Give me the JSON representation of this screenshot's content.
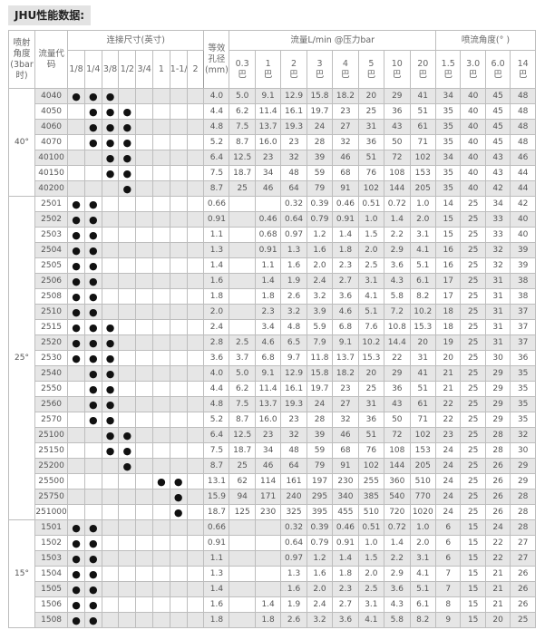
{
  "title": "JHU性能数据:",
  "headers": {
    "spray_angle": "喷射角度(3bar时)",
    "flow_code": "流量代码",
    "connection_size": "连接尺寸(英寸)",
    "sizes": [
      "1/8",
      "1/4",
      "3/8",
      "1/2",
      "3/4",
      "1",
      "1-1/4",
      "2"
    ],
    "orifice_line1": "等效",
    "orifice_line2": "孔径",
    "orifice_line3": "(mm)",
    "flow": "流量L/min @压力bar",
    "flow_pressures": [
      "0.3",
      "1",
      "2",
      "3",
      "4",
      "5",
      "10",
      "20"
    ],
    "spray_angle_deg": "喷流角度(° )",
    "angle_pressures": [
      "1.5",
      "3.0",
      "6.0",
      "14"
    ],
    "unit": "巴"
  },
  "dot_symbol": "●",
  "groups": [
    {
      "angle": "40°",
      "rows": [
        {
          "code": "4040",
          "sizes": [
            1,
            1,
            1,
            0,
            0,
            0,
            0,
            0
          ],
          "orifice": "4.0",
          "flow": [
            "5.0",
            "9.1",
            "12.9",
            "15.8",
            "18.2",
            "20",
            "29",
            "41"
          ],
          "angles": [
            "34",
            "40",
            "45",
            "48"
          ]
        },
        {
          "code": "4050",
          "sizes": [
            0,
            1,
            1,
            1,
            0,
            0,
            0,
            0
          ],
          "orifice": "4.4",
          "flow": [
            "6.2",
            "11.4",
            "16.1",
            "19.7",
            "23",
            "25",
            "36",
            "51"
          ],
          "angles": [
            "35",
            "40",
            "45",
            "48"
          ]
        },
        {
          "code": "4060",
          "sizes": [
            0,
            1,
            1,
            1,
            0,
            0,
            0,
            0
          ],
          "orifice": "4.8",
          "flow": [
            "7.5",
            "13.7",
            "19.3",
            "24",
            "27",
            "31",
            "43",
            "61"
          ],
          "angles": [
            "35",
            "40",
            "45",
            "48"
          ]
        },
        {
          "code": "4070",
          "sizes": [
            0,
            1,
            1,
            1,
            0,
            0,
            0,
            0
          ],
          "orifice": "5.2",
          "flow": [
            "8.7",
            "16.0",
            "23",
            "28",
            "32",
            "36",
            "50",
            "71"
          ],
          "angles": [
            "35",
            "40",
            "45",
            "48"
          ]
        },
        {
          "code": "40100",
          "sizes": [
            0,
            0,
            1,
            1,
            0,
            0,
            0,
            0
          ],
          "orifice": "6.4",
          "flow": [
            "12.5",
            "23",
            "32",
            "39",
            "46",
            "51",
            "72",
            "102"
          ],
          "angles": [
            "34",
            "40",
            "43",
            "46"
          ]
        },
        {
          "code": "40150",
          "sizes": [
            0,
            0,
            1,
            1,
            0,
            0,
            0,
            0
          ],
          "orifice": "7.5",
          "flow": [
            "18.7",
            "34",
            "48",
            "59",
            "68",
            "76",
            "108",
            "153"
          ],
          "angles": [
            "35",
            "40",
            "43",
            "44"
          ]
        },
        {
          "code": "40200",
          "sizes": [
            0,
            0,
            0,
            1,
            0,
            0,
            0,
            0
          ],
          "orifice": "8.7",
          "flow": [
            "25",
            "46",
            "64",
            "79",
            "91",
            "102",
            "144",
            "205"
          ],
          "angles": [
            "35",
            "40",
            "42",
            "44"
          ]
        }
      ]
    },
    {
      "angle": "25°",
      "rows": [
        {
          "code": "2501",
          "sizes": [
            1,
            1,
            0,
            0,
            0,
            0,
            0,
            0
          ],
          "orifice": "0.66",
          "flow": [
            "",
            "",
            "0.32",
            "0.39",
            "0.46",
            "0.51",
            "0.72",
            "1.0"
          ],
          "angles": [
            "14",
            "25",
            "34",
            "42"
          ]
        },
        {
          "code": "2502",
          "sizes": [
            1,
            1,
            0,
            0,
            0,
            0,
            0,
            0
          ],
          "orifice": "0.91",
          "flow": [
            "",
            "0.46",
            "0.64",
            "0.79",
            "0.91",
            "1.0",
            "1.4",
            "2.0"
          ],
          "angles": [
            "15",
            "25",
            "33",
            "40"
          ]
        },
        {
          "code": "2503",
          "sizes": [
            1,
            1,
            0,
            0,
            0,
            0,
            0,
            0
          ],
          "orifice": "1.1",
          "flow": [
            "",
            "0.68",
            "0.97",
            "1.2",
            "1.4",
            "1.5",
            "2.2",
            "3.1"
          ],
          "angles": [
            "15",
            "25",
            "33",
            "40"
          ]
        },
        {
          "code": "2504",
          "sizes": [
            1,
            1,
            0,
            0,
            0,
            0,
            0,
            0
          ],
          "orifice": "1.3",
          "flow": [
            "",
            "0.91",
            "1.3",
            "1.6",
            "1.8",
            "2.0",
            "2.9",
            "4.1"
          ],
          "angles": [
            "16",
            "25",
            "32",
            "39"
          ]
        },
        {
          "code": "2505",
          "sizes": [
            1,
            1,
            0,
            0,
            0,
            0,
            0,
            0
          ],
          "orifice": "1.4",
          "flow": [
            "",
            "1.1",
            "1.6",
            "2.0",
            "2.3",
            "2.5",
            "3.6",
            "5.1"
          ],
          "angles": [
            "16",
            "25",
            "32",
            "39"
          ]
        },
        {
          "code": "2506",
          "sizes": [
            1,
            1,
            0,
            0,
            0,
            0,
            0,
            0
          ],
          "orifice": "1.6",
          "flow": [
            "",
            "1.4",
            "1.9",
            "2.4",
            "2.7",
            "3.1",
            "4.3",
            "6.1"
          ],
          "angles": [
            "17",
            "25",
            "31",
            "38"
          ]
        },
        {
          "code": "2508",
          "sizes": [
            1,
            1,
            0,
            0,
            0,
            0,
            0,
            0
          ],
          "orifice": "1.8",
          "flow": [
            "",
            "1.8",
            "2.6",
            "3.2",
            "3.6",
            "4.1",
            "5.8",
            "8.2"
          ],
          "angles": [
            "17",
            "25",
            "31",
            "38"
          ]
        },
        {
          "code": "2510",
          "sizes": [
            1,
            1,
            0,
            0,
            0,
            0,
            0,
            0
          ],
          "orifice": "2.0",
          "flow": [
            "",
            "2.3",
            "3.2",
            "3.9",
            "4.6",
            "5.1",
            "7.2",
            "10.2"
          ],
          "angles": [
            "18",
            "25",
            "31",
            "37"
          ]
        },
        {
          "code": "2515",
          "sizes": [
            1,
            1,
            1,
            0,
            0,
            0,
            0,
            0
          ],
          "orifice": "2.4",
          "flow": [
            "",
            "3.4",
            "4.8",
            "5.9",
            "6.8",
            "7.6",
            "10.8",
            "15.3"
          ],
          "angles": [
            "18",
            "25",
            "31",
            "37"
          ]
        },
        {
          "code": "2520",
          "sizes": [
            1,
            1,
            1,
            0,
            0,
            0,
            0,
            0
          ],
          "orifice": "2.8",
          "flow": [
            "2.5",
            "4.6",
            "6.5",
            "7.9",
            "9.1",
            "10.2",
            "14.4",
            "20"
          ],
          "angles": [
            "19",
            "25",
            "31",
            "37"
          ]
        },
        {
          "code": "2530",
          "sizes": [
            1,
            1,
            1,
            0,
            0,
            0,
            0,
            0
          ],
          "orifice": "3.6",
          "flow": [
            "3.7",
            "6.8",
            "9.7",
            "11.8",
            "13.7",
            "15.3",
            "22",
            "31"
          ],
          "angles": [
            "20",
            "25",
            "30",
            "36"
          ]
        },
        {
          "code": "2540",
          "sizes": [
            0,
            1,
            1,
            0,
            0,
            0,
            0,
            0
          ],
          "orifice": "4.0",
          "flow": [
            "5.0",
            "9.1",
            "12.9",
            "15.8",
            "18.2",
            "20",
            "29",
            "41"
          ],
          "angles": [
            "21",
            "25",
            "29",
            "35"
          ]
        },
        {
          "code": "2550",
          "sizes": [
            0,
            1,
            1,
            0,
            0,
            0,
            0,
            0
          ],
          "orifice": "4.4",
          "flow": [
            "6.2",
            "11.4",
            "16.1",
            "19.7",
            "23",
            "25",
            "36",
            "51"
          ],
          "angles": [
            "21",
            "25",
            "29",
            "35"
          ]
        },
        {
          "code": "2560",
          "sizes": [
            0,
            1,
            1,
            0,
            0,
            0,
            0,
            0
          ],
          "orifice": "4.8",
          "flow": [
            "7.5",
            "13.7",
            "19.3",
            "24",
            "27",
            "31",
            "43",
            "61"
          ],
          "angles": [
            "22",
            "25",
            "29",
            "35"
          ]
        },
        {
          "code": "2570",
          "sizes": [
            0,
            1,
            1,
            0,
            0,
            0,
            0,
            0
          ],
          "orifice": "5.2",
          "flow": [
            "8.7",
            "16.0",
            "23",
            "28",
            "32",
            "36",
            "50",
            "71"
          ],
          "angles": [
            "22",
            "25",
            "29",
            "35"
          ]
        },
        {
          "code": "25100",
          "sizes": [
            0,
            0,
            1,
            1,
            0,
            0,
            0,
            0
          ],
          "orifice": "6.4",
          "flow": [
            "12.5",
            "23",
            "32",
            "39",
            "46",
            "51",
            "72",
            "102"
          ],
          "angles": [
            "23",
            "25",
            "28",
            "32"
          ]
        },
        {
          "code": "25150",
          "sizes": [
            0,
            0,
            1,
            1,
            0,
            0,
            0,
            0
          ],
          "orifice": "7.5",
          "flow": [
            "18.7",
            "34",
            "48",
            "59",
            "68",
            "76",
            "108",
            "153"
          ],
          "angles": [
            "24",
            "25",
            "28",
            "30"
          ]
        },
        {
          "code": "25200",
          "sizes": [
            0,
            0,
            0,
            1,
            0,
            0,
            0,
            0
          ],
          "orifice": "8.7",
          "flow": [
            "25",
            "46",
            "64",
            "79",
            "91",
            "102",
            "144",
            "205"
          ],
          "angles": [
            "24",
            "25",
            "26",
            "29"
          ]
        },
        {
          "code": "25500",
          "sizes": [
            0,
            0,
            0,
            0,
            0,
            1,
            1,
            0
          ],
          "orifice": "13.1",
          "flow": [
            "62",
            "114",
            "161",
            "197",
            "230",
            "255",
            "360",
            "510"
          ],
          "angles": [
            "24",
            "25",
            "26",
            "29"
          ]
        },
        {
          "code": "25750",
          "sizes": [
            0,
            0,
            0,
            0,
            0,
            0,
            1,
            0
          ],
          "orifice": "15.9",
          "flow": [
            "94",
            "171",
            "240",
            "295",
            "340",
            "385",
            "540",
            "770"
          ],
          "angles": [
            "24",
            "25",
            "26",
            "28"
          ]
        },
        {
          "code": "251000",
          "sizes": [
            0,
            0,
            0,
            0,
            0,
            0,
            1,
            0
          ],
          "orifice": "18.7",
          "flow": [
            "125",
            "230",
            "325",
            "395",
            "455",
            "510",
            "720",
            "1020"
          ],
          "angles": [
            "24",
            "25",
            "26",
            "28"
          ]
        }
      ]
    },
    {
      "angle": "15°",
      "rows": [
        {
          "code": "1501",
          "sizes": [
            1,
            1,
            0,
            0,
            0,
            0,
            0,
            0
          ],
          "orifice": "0.66",
          "flow": [
            "",
            "",
            "0.32",
            "0.39",
            "0.46",
            "0.51",
            "0.72",
            "1.0"
          ],
          "angles": [
            "6",
            "15",
            "24",
            "28"
          ]
        },
        {
          "code": "1502",
          "sizes": [
            1,
            1,
            0,
            0,
            0,
            0,
            0,
            0
          ],
          "orifice": "0.91",
          "flow": [
            "",
            "",
            "0.64",
            "0.79",
            "0.91",
            "1.0",
            "1.4",
            "2.0"
          ],
          "angles": [
            "6",
            "15",
            "22",
            "27"
          ]
        },
        {
          "code": "1503",
          "sizes": [
            1,
            1,
            0,
            0,
            0,
            0,
            0,
            0
          ],
          "orifice": "1.1",
          "flow": [
            "",
            "",
            "0.97",
            "1.2",
            "1.4",
            "1.5",
            "2.2",
            "3.1"
          ],
          "angles": [
            "6",
            "15",
            "22",
            "27"
          ]
        },
        {
          "code": "1504",
          "sizes": [
            1,
            1,
            0,
            0,
            0,
            0,
            0,
            0
          ],
          "orifice": "1.3",
          "flow": [
            "",
            "",
            "1.3",
            "1.6",
            "1.8",
            "2.0",
            "2.9",
            "4.1"
          ],
          "angles": [
            "7",
            "15",
            "21",
            "26"
          ]
        },
        {
          "code": "1505",
          "sizes": [
            1,
            1,
            0,
            0,
            0,
            0,
            0,
            0
          ],
          "orifice": "1.4",
          "flow": [
            "",
            "",
            "1.6",
            "2.0",
            "2.3",
            "2.5",
            "3.6",
            "5.1"
          ],
          "angles": [
            "7",
            "15",
            "21",
            "26"
          ]
        },
        {
          "code": "1506",
          "sizes": [
            1,
            1,
            0,
            0,
            0,
            0,
            0,
            0
          ],
          "orifice": "1.6",
          "flow": [
            "",
            "1.4",
            "1.9",
            "2.4",
            "2.7",
            "3.1",
            "4.3",
            "6.1"
          ],
          "angles": [
            "8",
            "15",
            "21",
            "26"
          ]
        },
        {
          "code": "1508",
          "sizes": [
            1,
            1,
            0,
            0,
            0,
            0,
            0,
            0
          ],
          "orifice": "1.8",
          "flow": [
            "",
            "1.8",
            "2.6",
            "3.2",
            "3.6",
            "4.1",
            "5.8",
            "8.2"
          ],
          "angles": [
            "9",
            "15",
            "20",
            "25"
          ]
        }
      ]
    }
  ]
}
